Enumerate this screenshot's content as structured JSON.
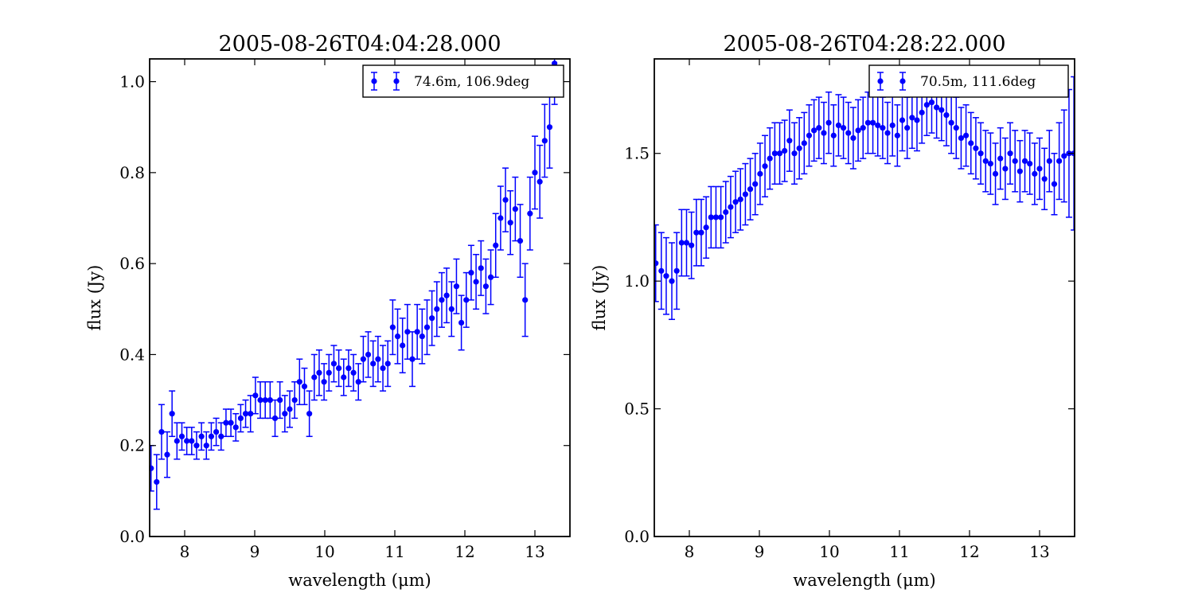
{
  "chart_data": [
    {
      "type": "scatter",
      "title": "2005-08-26T04:04:28.000",
      "xlabel": "wavelength (μm)",
      "ylabel": "flux (Jy)",
      "xlim": [
        7.5,
        13.5
      ],
      "ylim": [
        0.0,
        1.05
      ],
      "xticks": [
        "8",
        "9",
        "10",
        "11",
        "12",
        "13"
      ],
      "yticks": [
        "0.0",
        "0.2",
        "0.4",
        "0.6",
        "0.8",
        "1.0"
      ],
      "legend_position": "top-right",
      "color": "#0000ff",
      "series": [
        {
          "name": "74.6m, 106.9deg",
          "x": [
            7.52,
            7.6,
            7.67,
            7.75,
            7.82,
            7.89,
            7.96,
            8.03,
            8.1,
            8.17,
            8.24,
            8.31,
            8.38,
            8.45,
            8.52,
            8.59,
            8.66,
            8.73,
            8.8,
            8.87,
            8.94,
            9.01,
            9.08,
            9.15,
            9.22,
            9.29,
            9.36,
            9.43,
            9.5,
            9.57,
            9.64,
            9.71,
            9.78,
            9.85,
            9.92,
            9.99,
            10.06,
            10.13,
            10.2,
            10.27,
            10.34,
            10.41,
            10.48,
            10.55,
            10.62,
            10.69,
            10.76,
            10.83,
            10.9,
            10.97,
            11.04,
            11.11,
            11.18,
            11.25,
            11.32,
            11.39,
            11.46,
            11.53,
            11.6,
            11.67,
            11.74,
            11.81,
            11.88,
            11.95,
            12.02,
            12.09,
            12.16,
            12.23,
            12.3,
            12.37,
            12.44,
            12.51,
            12.58,
            12.65,
            12.72,
            12.79,
            12.86,
            12.93,
            13.0,
            13.07,
            13.14,
            13.21,
            13.28
          ],
          "y": [
            0.15,
            0.12,
            0.23,
            0.18,
            0.27,
            0.21,
            0.22,
            0.21,
            0.21,
            0.2,
            0.22,
            0.2,
            0.22,
            0.23,
            0.22,
            0.25,
            0.25,
            0.24,
            0.26,
            0.27,
            0.27,
            0.31,
            0.3,
            0.3,
            0.3,
            0.26,
            0.3,
            0.27,
            0.28,
            0.3,
            0.34,
            0.33,
            0.27,
            0.35,
            0.36,
            0.34,
            0.36,
            0.38,
            0.37,
            0.35,
            0.37,
            0.36,
            0.34,
            0.39,
            0.4,
            0.38,
            0.39,
            0.37,
            0.38,
            0.46,
            0.44,
            0.42,
            0.45,
            0.39,
            0.45,
            0.44,
            0.46,
            0.48,
            0.5,
            0.52,
            0.53,
            0.5,
            0.55,
            0.47,
            0.52,
            0.58,
            0.56,
            0.59,
            0.55,
            0.57,
            0.64,
            0.7,
            0.74,
            0.69,
            0.72,
            0.65,
            0.52,
            0.71,
            0.8,
            0.78,
            0.87,
            0.9,
            1.04
          ],
          "yerr": [
            0.05,
            0.06,
            0.06,
            0.05,
            0.05,
            0.04,
            0.03,
            0.03,
            0.03,
            0.03,
            0.03,
            0.03,
            0.03,
            0.03,
            0.03,
            0.03,
            0.03,
            0.03,
            0.03,
            0.03,
            0.04,
            0.04,
            0.04,
            0.04,
            0.04,
            0.04,
            0.04,
            0.04,
            0.04,
            0.04,
            0.05,
            0.04,
            0.05,
            0.05,
            0.05,
            0.04,
            0.04,
            0.04,
            0.04,
            0.04,
            0.04,
            0.04,
            0.04,
            0.05,
            0.05,
            0.05,
            0.05,
            0.05,
            0.05,
            0.06,
            0.06,
            0.06,
            0.06,
            0.06,
            0.06,
            0.06,
            0.06,
            0.06,
            0.06,
            0.06,
            0.06,
            0.06,
            0.06,
            0.06,
            0.06,
            0.06,
            0.06,
            0.06,
            0.06,
            0.06,
            0.07,
            0.07,
            0.07,
            0.07,
            0.07,
            0.08,
            0.08,
            0.08,
            0.08,
            0.08,
            0.08,
            0.09,
            0.09
          ]
        }
      ]
    },
    {
      "type": "scatter",
      "title": "2005-08-26T04:28:22.000",
      "xlabel": "wavelength (μm)",
      "ylabel": "flux (Jy)",
      "xlim": [
        7.5,
        13.5
      ],
      "ylim": [
        0.0,
        1.87
      ],
      "xticks": [
        "8",
        "9",
        "10",
        "11",
        "12",
        "13"
      ],
      "yticks": [
        "0.0",
        "0.5",
        "1.0",
        "1.5"
      ],
      "legend_position": "top-right",
      "color": "#0000ff",
      "series": [
        {
          "name": "70.5m, 111.6deg",
          "x": [
            7.52,
            7.6,
            7.67,
            7.75,
            7.82,
            7.89,
            7.96,
            8.03,
            8.1,
            8.17,
            8.24,
            8.31,
            8.38,
            8.45,
            8.52,
            8.59,
            8.66,
            8.73,
            8.8,
            8.87,
            8.94,
            9.01,
            9.08,
            9.15,
            9.22,
            9.29,
            9.36,
            9.43,
            9.5,
            9.57,
            9.64,
            9.71,
            9.78,
            9.85,
            9.92,
            9.99,
            10.06,
            10.13,
            10.2,
            10.27,
            10.34,
            10.41,
            10.48,
            10.55,
            10.62,
            10.69,
            10.76,
            10.83,
            10.9,
            10.97,
            11.04,
            11.11,
            11.18,
            11.25,
            11.32,
            11.39,
            11.46,
            11.53,
            11.6,
            11.67,
            11.74,
            11.81,
            11.88,
            11.95,
            12.02,
            12.09,
            12.16,
            12.23,
            12.3,
            12.37,
            12.44,
            12.51,
            12.58,
            12.65,
            12.72,
            12.79,
            12.86,
            12.93,
            13.0,
            13.07,
            13.14,
            13.21,
            13.28,
            13.35,
            13.42,
            13.49
          ],
          "y": [
            1.07,
            1.04,
            1.02,
            1.0,
            1.04,
            1.15,
            1.15,
            1.14,
            1.19,
            1.19,
            1.21,
            1.25,
            1.25,
            1.25,
            1.27,
            1.29,
            1.31,
            1.32,
            1.34,
            1.36,
            1.38,
            1.42,
            1.45,
            1.48,
            1.5,
            1.5,
            1.51,
            1.55,
            1.5,
            1.52,
            1.54,
            1.57,
            1.59,
            1.6,
            1.58,
            1.62,
            1.57,
            1.61,
            1.6,
            1.58,
            1.56,
            1.59,
            1.6,
            1.62,
            1.62,
            1.61,
            1.6,
            1.58,
            1.61,
            1.57,
            1.63,
            1.6,
            1.64,
            1.63,
            1.66,
            1.69,
            1.7,
            1.68,
            1.67,
            1.65,
            1.62,
            1.6,
            1.56,
            1.57,
            1.54,
            1.52,
            1.5,
            1.47,
            1.46,
            1.42,
            1.48,
            1.44,
            1.5,
            1.47,
            1.43,
            1.47,
            1.46,
            1.42,
            1.44,
            1.4,
            1.47,
            1.38,
            1.47,
            1.49,
            1.5,
            1.5
          ],
          "yerr": [
            0.15,
            0.15,
            0.15,
            0.15,
            0.15,
            0.13,
            0.13,
            0.13,
            0.13,
            0.13,
            0.12,
            0.12,
            0.12,
            0.12,
            0.12,
            0.12,
            0.12,
            0.12,
            0.12,
            0.12,
            0.12,
            0.12,
            0.12,
            0.12,
            0.12,
            0.12,
            0.12,
            0.12,
            0.12,
            0.12,
            0.12,
            0.12,
            0.12,
            0.12,
            0.12,
            0.12,
            0.12,
            0.12,
            0.12,
            0.12,
            0.12,
            0.12,
            0.12,
            0.12,
            0.12,
            0.12,
            0.12,
            0.12,
            0.12,
            0.12,
            0.12,
            0.12,
            0.12,
            0.12,
            0.12,
            0.12,
            0.12,
            0.12,
            0.12,
            0.12,
            0.12,
            0.12,
            0.12,
            0.12,
            0.12,
            0.12,
            0.12,
            0.12,
            0.12,
            0.12,
            0.12,
            0.12,
            0.12,
            0.12,
            0.12,
            0.12,
            0.12,
            0.12,
            0.12,
            0.12,
            0.12,
            0.12,
            0.15,
            0.18,
            0.25,
            0.3
          ]
        }
      ]
    }
  ]
}
